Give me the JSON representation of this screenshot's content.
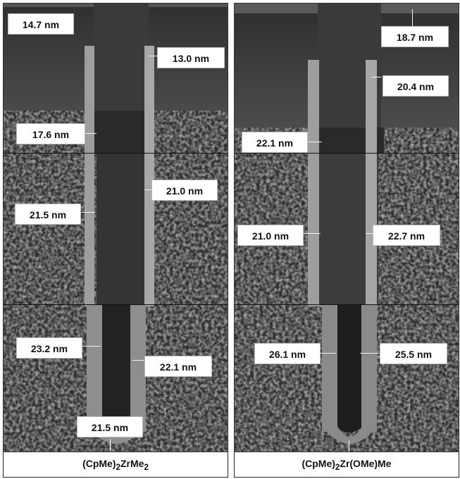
{
  "panels": [
    {
      "caption_html": "(CpMe)<sub>2</sub>ZrMe<sub>2</sub>",
      "caption_plain": "(CpMe)2ZrMe2",
      "labels": [
        {
          "text": "14.7 nm"
        },
        {
          "text": "13.0 nm"
        },
        {
          "text": "17.6  nm"
        },
        {
          "text": "21.0 nm"
        },
        {
          "text": "21.5 nm"
        },
        {
          "text": "23.2 nm"
        },
        {
          "text": "22.1 nm"
        },
        {
          "text": "21.5 nm"
        }
      ]
    },
    {
      "caption_html": "(CpMe)<sub>2</sub>Zr(OMe)Me",
      "caption_plain": "(CpMe)2Zr(OMe)Me",
      "labels": [
        {
          "text": "18.7 nm"
        },
        {
          "text": "20.4 nm"
        },
        {
          "text": "22.1 nm"
        },
        {
          "text": "21.0 nm"
        },
        {
          "text": "22.7 nm"
        },
        {
          "text": "26.1 nm"
        },
        {
          "text": "25.5 nm"
        }
      ]
    }
  ]
}
